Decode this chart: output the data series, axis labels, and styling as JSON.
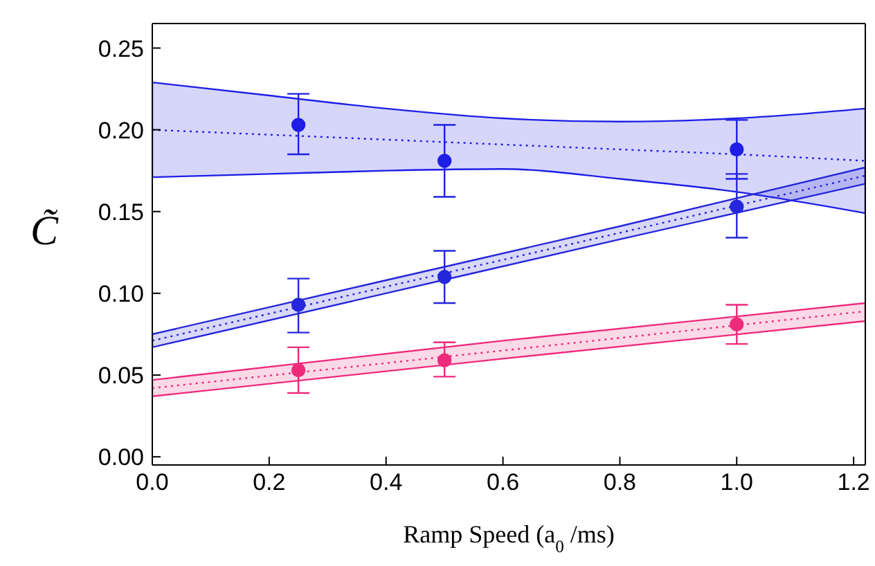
{
  "chart_data": {
    "type": "scatter",
    "xlabel": "Ramp Speed (a$_{0}$/ms)",
    "ylabel": "C̃",
    "xlim": [
      0,
      1.22
    ],
    "ylim": [
      -0.005,
      0.265
    ],
    "xticks": [
      {
        "value": 0,
        "label": "0.0"
      },
      {
        "value": 0.2,
        "label": "0.2"
      },
      {
        "value": 0.4,
        "label": "0.4"
      },
      {
        "value": 0.6,
        "label": "0.6"
      },
      {
        "value": 0.8,
        "label": "0.8"
      },
      {
        "value": 1,
        "label": "1.0"
      },
      {
        "value": 1.2,
        "label": "1.2"
      }
    ],
    "yticks": [
      {
        "value": 0,
        "label": "0.00"
      },
      {
        "value": 0.05,
        "label": "0.05"
      },
      {
        "value": 0.1,
        "label": "0.10"
      },
      {
        "value": 0.15,
        "label": "0.15"
      },
      {
        "value": 0.2,
        "label": "0.20"
      },
      {
        "value": 0.25,
        "label": "0.25"
      }
    ],
    "grid": false,
    "legend": false,
    "marker": "circle",
    "series": [
      {
        "type": "line",
        "color": "#1e1ee6",
        "line_style": "dotted",
        "marker": "none",
        "x": [
          0,
          0.2,
          0.4,
          0.6,
          0.8,
          1.0,
          1.22
        ],
        "values": [
          0.2,
          0.197,
          0.194,
          0.191,
          0.188,
          0.185,
          0.181
        ],
        "lower": [
          0.171,
          0.173,
          0.175,
          0.176,
          0.17,
          0.162,
          0.149
        ],
        "upper": [
          0.229,
          0.221,
          0.213,
          0.207,
          0.205,
          0.207,
          0.213
        ]
      },
      {
        "type": "line",
        "color": "#2626dc",
        "line_style": "dotted",
        "marker": "none",
        "x": [
          0,
          0.4,
          0.8,
          1.22
        ],
        "values": [
          0.071,
          0.104,
          0.137,
          0.172
        ],
        "lower": [
          0.067,
          0.1,
          0.133,
          0.167
        ],
        "upper": [
          0.075,
          0.108,
          0.141,
          0.177
        ]
      },
      {
        "type": "line",
        "color": "#ee2a7b",
        "line_style": "dotted",
        "marker": "none",
        "x": [
          0,
          0.6,
          1.22
        ],
        "values": [
          0.042,
          0.065,
          0.089
        ],
        "lower": [
          0.037,
          0.06,
          0.083
        ],
        "upper": [
          0.047,
          0.071,
          0.094
        ]
      },
      {
        "color": "#1e1ee6",
        "x": [
          0.25,
          0.5,
          1.0
        ],
        "values": [
          0.203,
          0.181,
          0.188
        ],
        "errors": [
          [
            0.185,
            0.222
          ],
          [
            0.159,
            0.203
          ],
          [
            0.17,
            0.206
          ]
        ]
      },
      {
        "color": "#2626dc",
        "x": [
          0.25,
          0.5,
          1.0
        ],
        "values": [
          0.093,
          0.11,
          0.153
        ],
        "errors": [
          [
            0.076,
            0.109
          ],
          [
            0.094,
            0.126
          ],
          [
            0.134,
            0.173
          ]
        ]
      },
      {
        "color": "#ee2a7b",
        "x": [
          0.25,
          0.5,
          1.0
        ],
        "values": [
          0.053,
          0.059,
          0.081
        ],
        "errors": [
          [
            0.039,
            0.067
          ],
          [
            0.049,
            0.07
          ],
          [
            0.069,
            0.093
          ]
        ]
      }
    ]
  }
}
